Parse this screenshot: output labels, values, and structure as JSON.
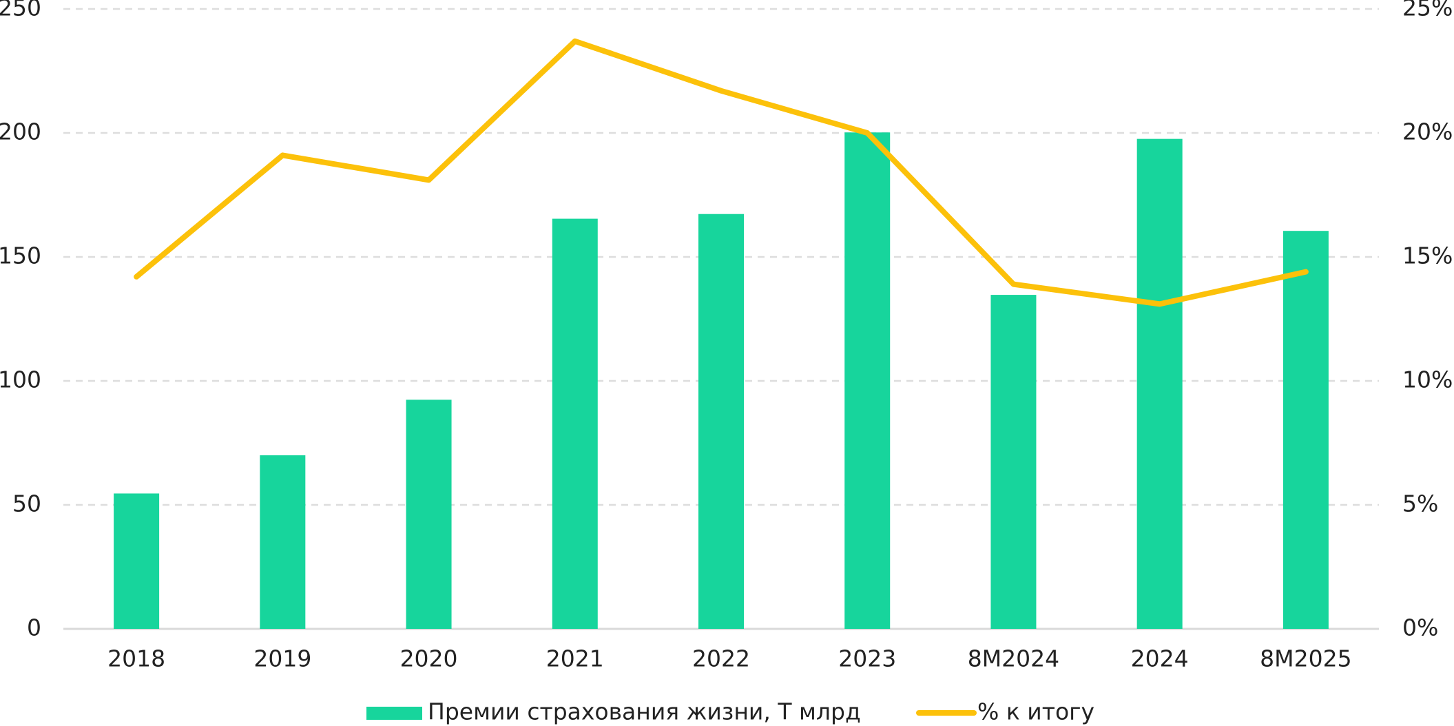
{
  "chart_data": {
    "type": "bar_line",
    "categories": [
      "2018",
      "2019",
      "2020",
      "2021",
      "2022",
      "2023",
      "8M2024",
      "2024",
      "8M2025"
    ],
    "series": [
      {
        "name": "Премии страхования жизни, Т млрд",
        "type": "bar",
        "color": "#17d59c",
        "values": [
          54.6,
          70,
          92.4,
          165.4,
          167.3,
          200.2,
          134.7,
          197.6,
          160.5
        ]
      },
      {
        "name": "% к итогу",
        "type": "line",
        "axis": "y2",
        "color": "#fcc10a",
        "values": [
          14.2,
          19.1,
          18.1,
          23.7,
          21.7,
          20.0,
          13.9,
          13.1,
          14.4
        ]
      }
    ],
    "ylim": [
      0,
      250
    ],
    "yticks": [
      0,
      50,
      100,
      150,
      200,
      250
    ],
    "y2lim": [
      0,
      25
    ],
    "y2ticks": [
      {
        "value": 0,
        "label": "0%"
      },
      {
        "value": 5,
        "label": "5%"
      },
      {
        "value": 10,
        "label": "10%"
      },
      {
        "value": 15,
        "label": "15%"
      },
      {
        "value": 20,
        "label": "20%"
      },
      {
        "value": 25,
        "label": "25%"
      }
    ],
    "grid": true,
    "legend": "bottom"
  }
}
